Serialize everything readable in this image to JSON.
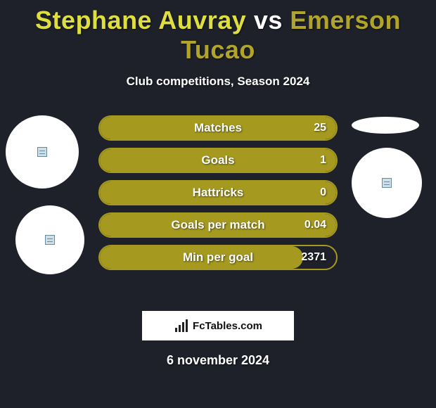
{
  "header": {
    "player1": "Stephane Auvray",
    "vs": "vs",
    "player2": "Emerson Tucao",
    "player1_color": "#dede3f",
    "player2_color": "#b0a529",
    "subtitle": "Club competitions, Season 2024"
  },
  "stats": {
    "bar_border_color": "#a59a1f",
    "bar_fill_color": "#a59a1f",
    "bar_bg_color": "transparent",
    "rows": [
      {
        "label": "Matches",
        "value": "25",
        "fill_pct": 100
      },
      {
        "label": "Goals",
        "value": "1",
        "fill_pct": 100
      },
      {
        "label": "Hattricks",
        "value": "0",
        "fill_pct": 100
      },
      {
        "label": "Goals per match",
        "value": "0.04",
        "fill_pct": 100
      },
      {
        "label": "Min per goal",
        "value": "2371",
        "fill_pct": 86
      }
    ]
  },
  "avatars": {
    "left": [
      {
        "shape": "circle"
      },
      {
        "shape": "circle"
      }
    ],
    "right": [
      {
        "shape": "ellipse"
      },
      {
        "shape": "circle"
      }
    ]
  },
  "attribution": {
    "text": "FcTables.com"
  },
  "date": "6 november 2024",
  "colors": {
    "page_bg": "#1e2129",
    "text": "#ffffff"
  }
}
